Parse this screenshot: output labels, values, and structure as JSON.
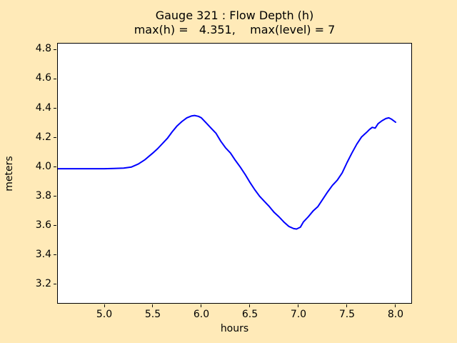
{
  "figure": {
    "background_color": "#ffeab8",
    "plot_background_color": "#ffffff",
    "frame_color": "#000000"
  },
  "chart_data": {
    "type": "line",
    "title": "Gauge 321 : Flow Depth (h)",
    "subtitle": "max(h) =   4.351,    max(level) = 7",
    "xlabel": "hours",
    "ylabel": "meters",
    "max_h": 4.351,
    "max_level": 7,
    "x_ticks": [
      5.0,
      5.5,
      6.0,
      6.5,
      7.0,
      7.5,
      8.0
    ],
    "y_ticks": [
      3.2,
      3.4,
      3.6,
      3.8,
      4.0,
      4.2,
      4.4,
      4.6,
      4.8
    ],
    "xlim": [
      4.522,
      8.162
    ],
    "ylim": [
      3.073,
      4.841
    ],
    "grid": false,
    "legend": false,
    "line_color": "#0000ff",
    "line_width": 2,
    "series": [
      {
        "name": "h",
        "points": [
          [
            4.522,
            3.988
          ],
          [
            4.7,
            3.988
          ],
          [
            4.9,
            3.988
          ],
          [
            5.0,
            3.988
          ],
          [
            5.1,
            3.99
          ],
          [
            5.2,
            3.992
          ],
          [
            5.28,
            4.0
          ],
          [
            5.35,
            4.02
          ],
          [
            5.42,
            4.05
          ],
          [
            5.5,
            4.095
          ],
          [
            5.55,
            4.125
          ],
          [
            5.6,
            4.16
          ],
          [
            5.65,
            4.195
          ],
          [
            5.7,
            4.24
          ],
          [
            5.75,
            4.28
          ],
          [
            5.8,
            4.31
          ],
          [
            5.85,
            4.335
          ],
          [
            5.9,
            4.348
          ],
          [
            5.93,
            4.351
          ],
          [
            5.97,
            4.345
          ],
          [
            6.0,
            4.335
          ],
          [
            6.05,
            4.3
          ],
          [
            6.1,
            4.265
          ],
          [
            6.15,
            4.23
          ],
          [
            6.2,
            4.175
          ],
          [
            6.25,
            4.13
          ],
          [
            6.3,
            4.095
          ],
          [
            6.35,
            4.045
          ],
          [
            6.4,
            4.0
          ],
          [
            6.45,
            3.95
          ],
          [
            6.5,
            3.895
          ],
          [
            6.55,
            3.845
          ],
          [
            6.6,
            3.8
          ],
          [
            6.65,
            3.765
          ],
          [
            6.7,
            3.73
          ],
          [
            6.75,
            3.69
          ],
          [
            6.8,
            3.66
          ],
          [
            6.85,
            3.625
          ],
          [
            6.9,
            3.595
          ],
          [
            6.95,
            3.58
          ],
          [
            6.98,
            3.577
          ],
          [
            7.02,
            3.59
          ],
          [
            7.05,
            3.625
          ],
          [
            7.1,
            3.66
          ],
          [
            7.15,
            3.7
          ],
          [
            7.2,
            3.73
          ],
          [
            7.25,
            3.78
          ],
          [
            7.3,
            3.83
          ],
          [
            7.35,
            3.875
          ],
          [
            7.4,
            3.91
          ],
          [
            7.45,
            3.96
          ],
          [
            7.5,
            4.03
          ],
          [
            7.55,
            4.095
          ],
          [
            7.6,
            4.155
          ],
          [
            7.65,
            4.205
          ],
          [
            7.7,
            4.235
          ],
          [
            7.73,
            4.255
          ],
          [
            7.76,
            4.27
          ],
          [
            7.79,
            4.265
          ],
          [
            7.82,
            4.295
          ],
          [
            7.86,
            4.315
          ],
          [
            7.9,
            4.33
          ],
          [
            7.93,
            4.335
          ],
          [
            7.96,
            4.325
          ],
          [
            8.0,
            4.305
          ]
        ]
      }
    ]
  }
}
